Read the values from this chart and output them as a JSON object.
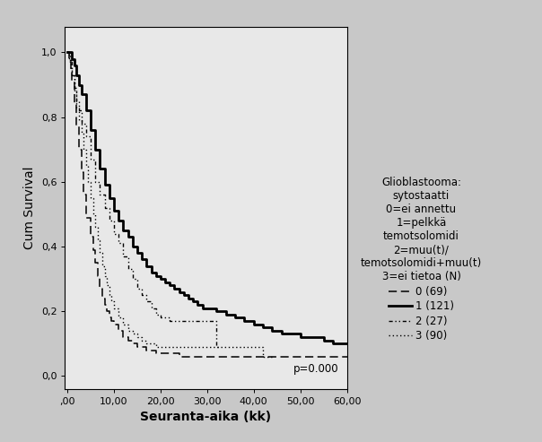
{
  "title_lines": [
    "Glioblastooma:",
    "sytostaatti",
    "0=ei annettu",
    "1=pelkkä",
    "temotsolomidi",
    "2=muu(t)/",
    "temotsolomidi+muu(t)",
    "3=ei tietoa (N)"
  ],
  "xlabel": "Seuranta-aika (kk)",
  "ylabel": "Cum Survival",
  "xlim": [
    -0.5,
    60
  ],
  "ylim": [
    -0.04,
    1.08
  ],
  "xticks": [
    0,
    10,
    20,
    30,
    40,
    50,
    60
  ],
  "xtick_labels": [
    ",00",
    "10,00",
    "20,00",
    "30,00",
    "40,00",
    "50,00",
    "60,00"
  ],
  "yticks": [
    0.0,
    0.2,
    0.4,
    0.6,
    0.8,
    1.0
  ],
  "ytick_labels": [
    "0,0",
    "0,2",
    "0,4",
    "0,6",
    "0,8",
    "1,0"
  ],
  "pvalue": "p=0.000",
  "plot_bg": "#e8e8e8",
  "fig_bg": "#c8c8c8",
  "legend_labels": [
    "0 (69)",
    "1 (121)",
    "2 (27)",
    "3 (90)"
  ],
  "group0": {
    "x": [
      0,
      0.3,
      0.7,
      1.0,
      1.5,
      2.0,
      2.5,
      3.0,
      3.5,
      4.0,
      5.0,
      5.5,
      6.0,
      6.5,
      7.0,
      7.5,
      8.0,
      8.5,
      9.0,
      9.5,
      10.0,
      11.0,
      12.0,
      13.0,
      14.0,
      15.0,
      16.0,
      17.0,
      18.0,
      19.0,
      20.0,
      22.0,
      24.0,
      26.0,
      28.0,
      30.0,
      35.0,
      40.0,
      42.0,
      60.0
    ],
    "y": [
      1.0,
      0.97,
      0.94,
      0.91,
      0.84,
      0.77,
      0.7,
      0.63,
      0.56,
      0.49,
      0.43,
      0.39,
      0.35,
      0.31,
      0.27,
      0.24,
      0.22,
      0.2,
      0.18,
      0.17,
      0.16,
      0.14,
      0.12,
      0.11,
      0.1,
      0.09,
      0.09,
      0.08,
      0.08,
      0.07,
      0.07,
      0.07,
      0.06,
      0.06,
      0.06,
      0.06,
      0.06,
      0.06,
      0.06,
      0.06
    ]
  },
  "group1": {
    "x": [
      0,
      0.5,
      1.0,
      1.5,
      2.0,
      2.5,
      3.0,
      4.0,
      5.0,
      6.0,
      7.0,
      8.0,
      9.0,
      10.0,
      11.0,
      12.0,
      13.0,
      14.0,
      15.0,
      16.0,
      17.0,
      18.0,
      19.0,
      20.0,
      21.0,
      22.0,
      23.0,
      24.0,
      25.0,
      26.0,
      27.0,
      28.0,
      29.0,
      30.0,
      32.0,
      34.0,
      36.0,
      38.0,
      40.0,
      42.0,
      44.0,
      46.0,
      48.0,
      50.0,
      55.0,
      57.0,
      60.0
    ],
    "y": [
      1.0,
      1.0,
      0.98,
      0.96,
      0.93,
      0.9,
      0.87,
      0.82,
      0.76,
      0.7,
      0.64,
      0.59,
      0.55,
      0.51,
      0.48,
      0.45,
      0.43,
      0.4,
      0.38,
      0.36,
      0.34,
      0.32,
      0.31,
      0.3,
      0.29,
      0.28,
      0.27,
      0.26,
      0.25,
      0.24,
      0.23,
      0.22,
      0.21,
      0.21,
      0.2,
      0.19,
      0.18,
      0.17,
      0.16,
      0.15,
      0.14,
      0.13,
      0.13,
      0.12,
      0.11,
      0.1,
      0.1
    ]
  },
  "group2": {
    "x": [
      0,
      0.5,
      1.0,
      1.5,
      2.0,
      2.5,
      3.0,
      4.0,
      5.0,
      6.0,
      7.0,
      8.0,
      9.0,
      10.0,
      11.0,
      12.0,
      13.0,
      14.0,
      15.0,
      16.0,
      17.0,
      18.0,
      19.0,
      20.0,
      22.0,
      24.0,
      26.0,
      28.0,
      30.0,
      32.0,
      33.0
    ],
    "y": [
      1.0,
      0.97,
      0.93,
      0.89,
      0.85,
      0.82,
      0.78,
      0.74,
      0.67,
      0.6,
      0.56,
      0.52,
      0.48,
      0.44,
      0.41,
      0.37,
      0.33,
      0.3,
      0.27,
      0.25,
      0.23,
      0.21,
      0.19,
      0.18,
      0.17,
      0.17,
      0.17,
      0.17,
      0.17,
      0.09,
      0.09
    ]
  },
  "group3": {
    "x": [
      0,
      0.3,
      0.7,
      1.0,
      1.5,
      2.0,
      2.5,
      3.0,
      3.5,
      4.0,
      4.5,
      5.0,
      5.5,
      6.0,
      6.5,
      7.0,
      7.5,
      8.0,
      8.5,
      9.0,
      9.5,
      10.0,
      11.0,
      12.0,
      13.0,
      14.0,
      15.0,
      16.0,
      17.0,
      18.0,
      19.0,
      20.0,
      22.0,
      24.0,
      26.0,
      28.0,
      30.0,
      32.0,
      34.0,
      36.0,
      38.0,
      40.0,
      41.0,
      42.0,
      44.0
    ],
    "y": [
      1.0,
      0.98,
      0.95,
      0.93,
      0.88,
      0.83,
      0.79,
      0.75,
      0.7,
      0.65,
      0.6,
      0.55,
      0.5,
      0.46,
      0.42,
      0.38,
      0.34,
      0.31,
      0.28,
      0.25,
      0.23,
      0.21,
      0.18,
      0.16,
      0.14,
      0.13,
      0.12,
      0.11,
      0.1,
      0.1,
      0.09,
      0.09,
      0.09,
      0.09,
      0.09,
      0.09,
      0.09,
      0.09,
      0.09,
      0.09,
      0.09,
      0.09,
      0.09,
      0.06,
      0.06
    ]
  },
  "fontsize_ticks": 8,
  "fontsize_axlabel": 10,
  "fontsize_legend_title": 8.5,
  "fontsize_legend": 8.5,
  "fontsize_pvalue": 8.5
}
